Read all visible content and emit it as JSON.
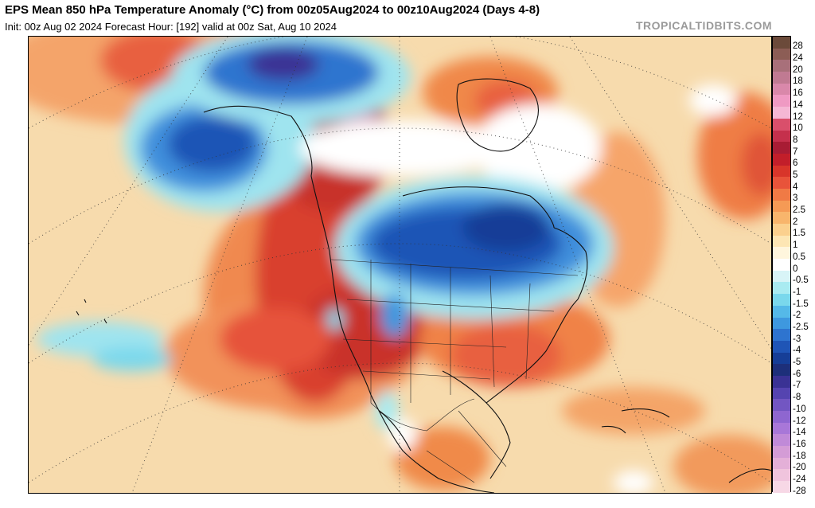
{
  "header": {
    "title": "EPS Mean 850 hPa Temperature Anomaly (°C) from 00z05Aug2024 to 00z10Aug2024 (Days 4-8)",
    "subtitle": "Init: 00z Aug 02 2024   Forecast Hour: [192]   valid at 00z Sat, Aug 10 2024",
    "brand": "TROPICALTIDBITS.COM"
  },
  "colorbar": {
    "labels": [
      "28",
      "24",
      "20",
      "18",
      "16",
      "14",
      "12",
      "10",
      "8",
      "7",
      "6",
      "5",
      "4",
      "3",
      "2.5",
      "2",
      "1.5",
      "1",
      "0.5",
      "0",
      "-0.5",
      "-1",
      "-1.5",
      "-2",
      "-2.5",
      "-3",
      "-4",
      "-5",
      "-6",
      "-7",
      "-8",
      "-10",
      "-12",
      "-14",
      "-16",
      "-18",
      "-20",
      "-24",
      "-28"
    ],
    "colors": [
      "#6b4a3a",
      "#8c5d55",
      "#a8707a",
      "#c07a92",
      "#d988aa",
      "#ef9ac3",
      "#f5b7d4",
      "#d94f6b",
      "#c5304c",
      "#a81c34",
      "#c21e2a",
      "#d8352a",
      "#e8533a",
      "#f07a45",
      "#f59a55",
      "#f8b56c",
      "#fbd08e",
      "#fde6b4",
      "#fff6dd",
      "#ffffff",
      "#d8f4f7",
      "#a9ebf1",
      "#7ad8ec",
      "#55b9e8",
      "#3e98df",
      "#2e74cf",
      "#1f55b6",
      "#163e97",
      "#1d2f7a",
      "#3a3294",
      "#5544b0",
      "#7256c2",
      "#8e66d0",
      "#a877d8",
      "#c08ad8",
      "#d49cd6",
      "#e4b0d8",
      "#f0c4dd",
      "#f7d8e6"
    ]
  }
}
